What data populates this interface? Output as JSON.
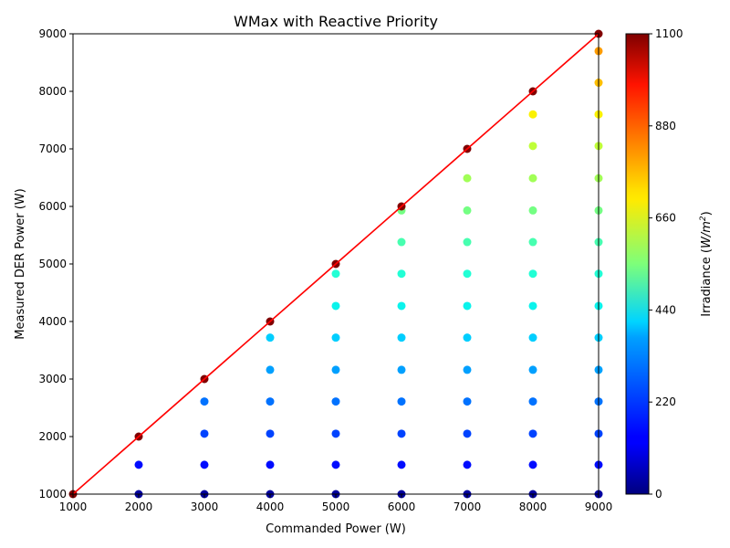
{
  "chart_data": {
    "type": "scatter",
    "title": "WMax with Reactive Priority",
    "xlabel": "Commanded Power (W)",
    "ylabel": "Measured DER Power (W)",
    "xlim": [
      1000,
      9000
    ],
    "ylim": [
      1000,
      9000
    ],
    "xticks": [
      1000,
      2000,
      3000,
      4000,
      5000,
      6000,
      7000,
      8000,
      9000
    ],
    "yticks": [
      1000,
      2000,
      3000,
      4000,
      5000,
      6000,
      7000,
      8000,
      9000
    ],
    "grid": false,
    "colormap": "jet",
    "colorbar": {
      "label": "Irradiance (W/m²)",
      "label_prefix": "Irradiance (",
      "label_unit_base": "W/m",
      "label_unit_sup": "2",
      "label_suffix": ")",
      "min": 0,
      "max": 1100,
      "ticks": [
        0,
        220,
        440,
        660,
        880,
        1100
      ]
    },
    "reference_line": {
      "color": "#ff0000",
      "points": [
        [
          1000,
          1000
        ],
        [
          9000,
          9000
        ]
      ]
    },
    "columns": [
      {
        "x": 1000,
        "y": [
          1000
        ],
        "irradiance": [
          1100
        ]
      },
      {
        "x": 2000,
        "y": [
          1000,
          1510,
          2000
        ],
        "irradiance": [
          30,
          150,
          1100
        ]
      },
      {
        "x": 3000,
        "y": [
          1000,
          1510,
          2050,
          2610,
          3000
        ],
        "irradiance": [
          30,
          150,
          210,
          260,
          1100
        ]
      },
      {
        "x": 4000,
        "y": [
          1000,
          1510,
          2050,
          2610,
          3160,
          3720,
          4000
        ],
        "irradiance": [
          30,
          150,
          210,
          260,
          310,
          360,
          1100
        ]
      },
      {
        "x": 5000,
        "y": [
          1000,
          1510,
          2050,
          2610,
          3160,
          3720,
          4270,
          4830,
          5000
        ],
        "irradiance": [
          30,
          150,
          210,
          260,
          310,
          360,
          400,
          430,
          1100
        ]
      },
      {
        "x": 6000,
        "y": [
          1000,
          1510,
          2050,
          2610,
          3160,
          3720,
          4270,
          4830,
          5380,
          5930,
          6000
        ],
        "irradiance": [
          30,
          150,
          210,
          260,
          310,
          360,
          400,
          430,
          480,
          540,
          1100
        ]
      },
      {
        "x": 7000,
        "y": [
          1000,
          1510,
          2050,
          2610,
          3160,
          3720,
          4270,
          4830,
          5380,
          5930,
          6490,
          7000
        ],
        "irradiance": [
          30,
          150,
          210,
          260,
          310,
          360,
          400,
          430,
          480,
          540,
          600,
          1100
        ]
      },
      {
        "x": 8000,
        "y": [
          1000,
          1510,
          2050,
          2610,
          3160,
          3720,
          4270,
          4830,
          5380,
          5930,
          6490,
          7050,
          7600,
          8000
        ],
        "irradiance": [
          30,
          150,
          210,
          260,
          310,
          360,
          400,
          430,
          480,
          540,
          600,
          640,
          720,
          1100
        ]
      },
      {
        "x": 9000,
        "y": [
          1000,
          1510,
          2050,
          2610,
          3160,
          3720,
          4270,
          4830,
          5380,
          5930,
          6490,
          7050,
          7600,
          8150,
          8700,
          9000
        ],
        "irradiance": [
          30,
          150,
          210,
          260,
          310,
          360,
          400,
          430,
          480,
          540,
          600,
          640,
          720,
          780,
          820,
          1100
        ]
      }
    ]
  }
}
